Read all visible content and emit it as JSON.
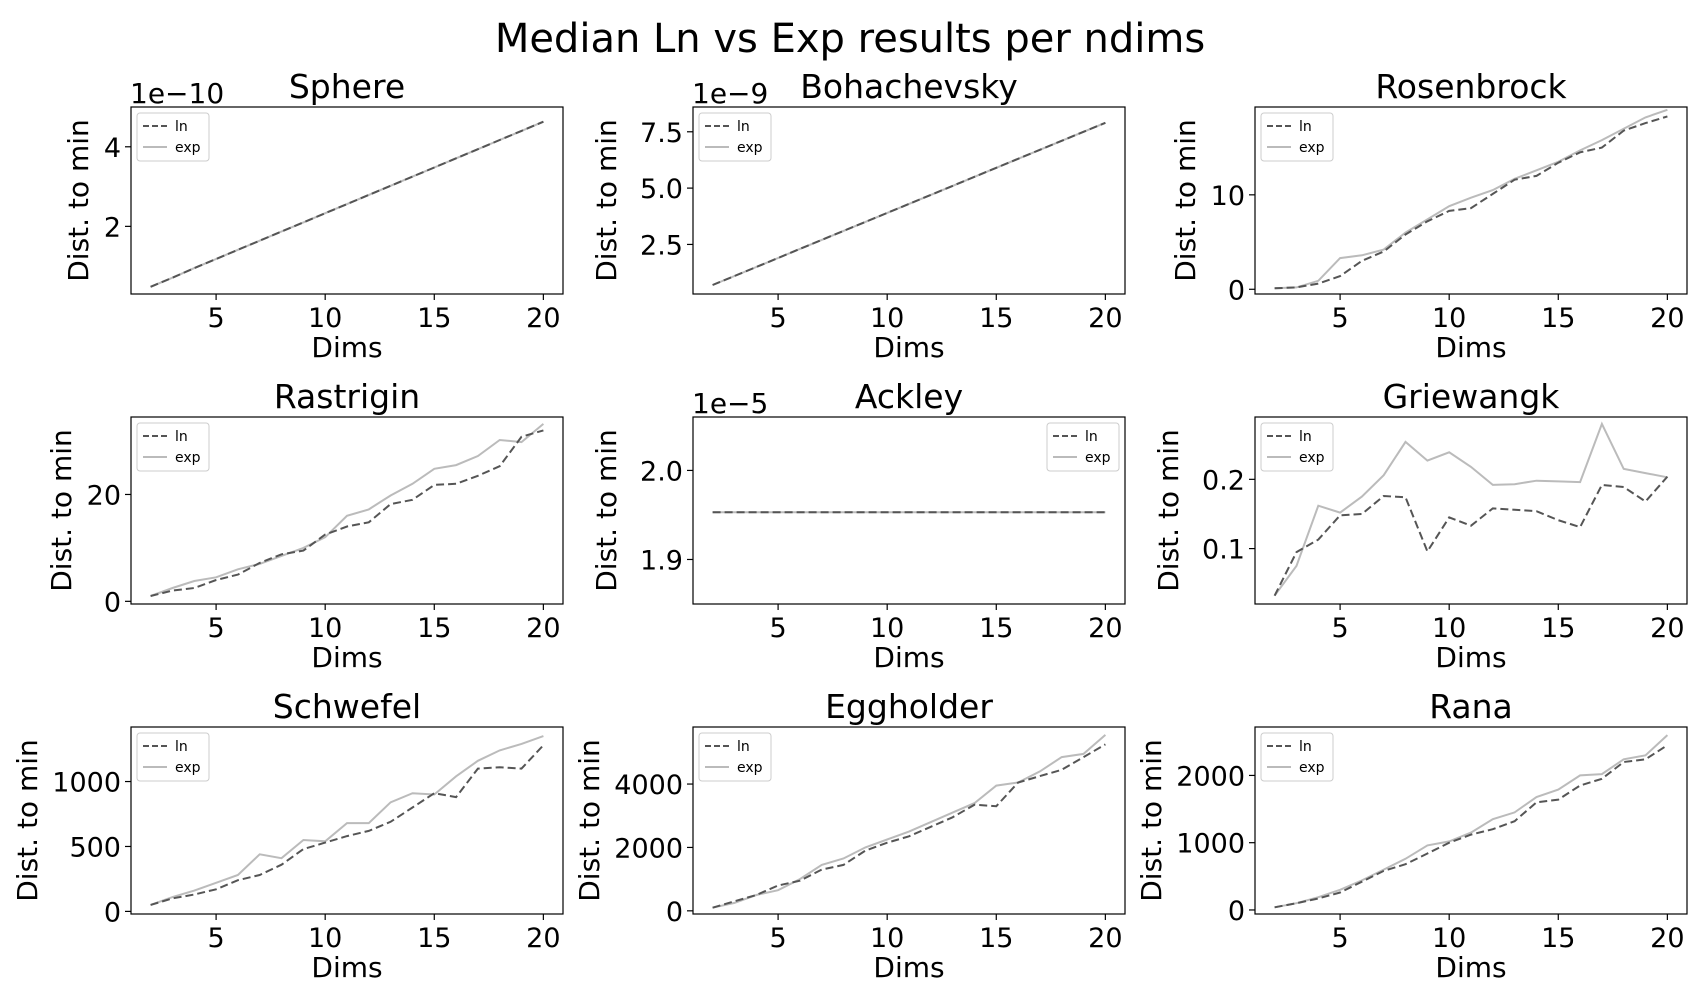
{
  "figure": {
    "title": "Median Ln vs Exp results per ndims",
    "legend": [
      "ln",
      "exp"
    ]
  },
  "chart_data": [
    {
      "type": "line",
      "title": "Sphere",
      "xlabel": "Dims",
      "ylabel": "Dist. to min",
      "offset_text": "1e−10",
      "xlim": [
        1.1,
        20.9
      ],
      "ylim": [
        0.3,
        5.0
      ],
      "xticks": [
        5,
        10,
        15,
        20
      ],
      "yticks": [
        2,
        4
      ],
      "legend_position": "upper left",
      "x": [
        2,
        3,
        4,
        5,
        6,
        7,
        8,
        9,
        10,
        11,
        12,
        13,
        14,
        15,
        16,
        17,
        18,
        19,
        20
      ],
      "series": [
        {
          "name": "ln",
          "style": "dashed",
          "color": "#555555",
          "values": [
            0.48,
            0.71,
            0.95,
            1.18,
            1.41,
            1.64,
            1.87,
            2.1,
            2.33,
            2.56,
            2.79,
            3.02,
            3.25,
            3.48,
            3.71,
            3.94,
            4.17,
            4.4,
            4.63
          ]
        },
        {
          "name": "exp",
          "style": "solid",
          "color": "#bbbbbb",
          "values": [
            0.48,
            0.71,
            0.95,
            1.18,
            1.41,
            1.64,
            1.87,
            2.1,
            2.33,
            2.56,
            2.79,
            3.02,
            3.25,
            3.48,
            3.71,
            3.94,
            4.17,
            4.4,
            4.63
          ]
        }
      ]
    },
    {
      "type": "line",
      "title": "Bohachevsky",
      "xlabel": "Dims",
      "ylabel": "Dist. to min",
      "offset_text": "1e−9",
      "xlim": [
        1.1,
        20.9
      ],
      "ylim": [
        0.3,
        8.6
      ],
      "xticks": [
        5,
        10,
        15,
        20
      ],
      "yticks": [
        2.5,
        5.0,
        7.5
      ],
      "legend_position": "upper left",
      "x": [
        2,
        3,
        4,
        5,
        6,
        7,
        8,
        9,
        10,
        11,
        12,
        13,
        14,
        15,
        16,
        17,
        18,
        19,
        20
      ],
      "series": [
        {
          "name": "ln",
          "style": "dashed",
          "color": "#555555",
          "values": [
            0.7,
            1.1,
            1.5,
            1.9,
            2.3,
            2.7,
            3.1,
            3.5,
            3.9,
            4.3,
            4.7,
            5.1,
            5.5,
            5.9,
            6.3,
            6.7,
            7.1,
            7.5,
            7.9
          ]
        },
        {
          "name": "exp",
          "style": "solid",
          "color": "#bbbbbb",
          "values": [
            0.7,
            1.1,
            1.5,
            1.9,
            2.3,
            2.7,
            3.1,
            3.5,
            3.9,
            4.3,
            4.7,
            5.1,
            5.5,
            5.9,
            6.3,
            6.7,
            7.1,
            7.5,
            7.9
          ]
        }
      ]
    },
    {
      "type": "line",
      "title": "Rosenbrock",
      "xlabel": "Dims",
      "ylabel": "Dist. to min",
      "offset_text": "",
      "xlim": [
        1.1,
        20.9
      ],
      "ylim": [
        -0.5,
        19.3
      ],
      "xticks": [
        5,
        10,
        15,
        20
      ],
      "yticks": [
        0,
        10
      ],
      "legend_position": "upper left",
      "x": [
        2,
        3,
        4,
        5,
        6,
        7,
        8,
        9,
        10,
        11,
        12,
        13,
        14,
        15,
        16,
        17,
        18,
        19,
        20
      ],
      "series": [
        {
          "name": "ln",
          "style": "dashed",
          "color": "#555555",
          "values": [
            0.1,
            0.2,
            0.6,
            1.4,
            3.0,
            4.0,
            5.8,
            7.2,
            8.3,
            8.6,
            10.1,
            11.6,
            12.0,
            13.4,
            14.5,
            15.0,
            16.8,
            17.6,
            18.3
          ]
        },
        {
          "name": "exp",
          "style": "solid",
          "color": "#bbbbbb",
          "values": [
            0.1,
            0.2,
            0.9,
            3.3,
            3.6,
            4.2,
            6.0,
            7.4,
            8.8,
            9.7,
            10.5,
            11.7,
            12.6,
            13.5,
            14.7,
            15.8,
            17.0,
            18.2,
            19.0
          ]
        }
      ]
    },
    {
      "type": "line",
      "title": "Rastrigin",
      "xlabel": "Dims",
      "ylabel": "Dist. to min",
      "offset_text": "",
      "xlim": [
        1.1,
        20.9
      ],
      "ylim": [
        -0.5,
        34.5
      ],
      "xticks": [
        5,
        10,
        15,
        20
      ],
      "yticks": [
        0,
        20
      ],
      "legend_position": "upper left",
      "x": [
        2,
        3,
        4,
        5,
        6,
        7,
        8,
        9,
        10,
        11,
        12,
        13,
        14,
        15,
        16,
        17,
        18,
        19,
        20
      ],
      "series": [
        {
          "name": "ln",
          "style": "dashed",
          "color": "#555555",
          "values": [
            1.0,
            2.0,
            2.5,
            4.0,
            5.0,
            7.2,
            8.8,
            9.5,
            12.5,
            14.0,
            14.8,
            18.2,
            19.0,
            21.8,
            22.0,
            23.5,
            25.3,
            30.8,
            32.0
          ]
        },
        {
          "name": "exp",
          "style": "solid",
          "color": "#bbbbbb",
          "values": [
            1.0,
            2.5,
            3.8,
            4.5,
            6.0,
            7.0,
            8.5,
            10.0,
            12.0,
            16.0,
            17.2,
            19.8,
            22.0,
            24.8,
            25.5,
            27.2,
            30.2,
            29.8,
            33.2
          ]
        }
      ]
    },
    {
      "type": "line",
      "title": "Ackley",
      "xlabel": "Dims",
      "ylabel": "Dist. to min",
      "offset_text": "1e−5",
      "xlim": [
        1.1,
        20.9
      ],
      "ylim": [
        1.85,
        2.06
      ],
      "xticks": [
        5,
        10,
        15,
        20
      ],
      "yticks": [
        1.9,
        2.0
      ],
      "legend_position": "upper right",
      "x": [
        2,
        3,
        4,
        5,
        6,
        7,
        8,
        9,
        10,
        11,
        12,
        13,
        14,
        15,
        16,
        17,
        18,
        19,
        20
      ],
      "series": [
        {
          "name": "ln",
          "style": "dashed",
          "color": "#555555",
          "values": [
            1.953,
            1.953,
            1.953,
            1.953,
            1.953,
            1.953,
            1.953,
            1.953,
            1.953,
            1.953,
            1.953,
            1.953,
            1.953,
            1.953,
            1.953,
            1.953,
            1.953,
            1.953,
            1.953
          ]
        },
        {
          "name": "exp",
          "style": "solid",
          "color": "#bbbbbb",
          "values": [
            1.953,
            1.953,
            1.953,
            1.953,
            1.953,
            1.953,
            1.953,
            1.953,
            1.953,
            1.953,
            1.953,
            1.953,
            1.953,
            1.953,
            1.953,
            1.953,
            1.953,
            1.953,
            1.953
          ]
        }
      ]
    },
    {
      "type": "line",
      "title": "Griewangk",
      "xlabel": "Dims",
      "ylabel": "Dist. to min",
      "offset_text": "",
      "xlim": [
        1.1,
        20.9
      ],
      "ylim": [
        0.02,
        0.29
      ],
      "xticks": [
        5,
        10,
        15,
        20
      ],
      "yticks": [
        0.1,
        0.2
      ],
      "legend_position": "upper left",
      "x": [
        2,
        3,
        4,
        5,
        6,
        7,
        8,
        9,
        10,
        11,
        12,
        13,
        14,
        15,
        16,
        17,
        18,
        19,
        20
      ],
      "series": [
        {
          "name": "ln",
          "style": "dashed",
          "color": "#555555",
          "values": [
            0.032,
            0.095,
            0.113,
            0.148,
            0.15,
            0.176,
            0.174,
            0.096,
            0.145,
            0.133,
            0.158,
            0.156,
            0.154,
            0.141,
            0.131,
            0.192,
            0.189,
            0.168,
            0.204
          ]
        },
        {
          "name": "exp",
          "style": "solid",
          "color": "#bbbbbb",
          "values": [
            0.032,
            0.075,
            0.162,
            0.152,
            0.175,
            0.206,
            0.254,
            0.227,
            0.239,
            0.218,
            0.192,
            0.193,
            0.198,
            0.197,
            0.196,
            0.28,
            0.215,
            0.209,
            0.203
          ]
        }
      ]
    },
    {
      "type": "line",
      "title": "Schwefel",
      "xlabel": "Dims",
      "ylabel": "Dist. to min",
      "offset_text": "",
      "xlim": [
        1.1,
        20.9
      ],
      "ylim": [
        -20,
        1420
      ],
      "xticks": [
        5,
        10,
        15,
        20
      ],
      "yticks": [
        0,
        500,
        1000
      ],
      "legend_position": "upper left",
      "x": [
        2,
        3,
        4,
        5,
        6,
        7,
        8,
        9,
        10,
        11,
        12,
        13,
        14,
        15,
        16,
        17,
        18,
        19,
        20
      ],
      "series": [
        {
          "name": "ln",
          "style": "dashed",
          "color": "#555555",
          "values": [
            50,
            100,
            130,
            170,
            240,
            280,
            360,
            480,
            530,
            580,
            620,
            690,
            800,
            910,
            880,
            1100,
            1110,
            1100,
            1280
          ]
        },
        {
          "name": "exp",
          "style": "solid",
          "color": "#bbbbbb",
          "values": [
            50,
            110,
            160,
            220,
            280,
            440,
            410,
            550,
            540,
            680,
            680,
            840,
            910,
            900,
            1040,
            1160,
            1240,
            1290,
            1350
          ]
        }
      ]
    },
    {
      "type": "line",
      "title": "Eggholder",
      "xlabel": "Dims",
      "ylabel": "Dist. to min",
      "offset_text": "",
      "xlim": [
        1.1,
        20.9
      ],
      "ylim": [
        -100,
        5800
      ],
      "xticks": [
        5,
        10,
        15,
        20
      ],
      "yticks": [
        0,
        2000,
        4000
      ],
      "legend_position": "upper left",
      "x": [
        2,
        3,
        4,
        5,
        6,
        7,
        8,
        9,
        10,
        11,
        12,
        13,
        14,
        15,
        16,
        17,
        18,
        19,
        20
      ],
      "series": [
        {
          "name": "ln",
          "style": "dashed",
          "color": "#555555",
          "values": [
            100,
            300,
            500,
            800,
            950,
            1300,
            1450,
            1900,
            2150,
            2350,
            2650,
            2950,
            3350,
            3300,
            4050,
            4250,
            4450,
            4850,
            5250
          ]
        },
        {
          "name": "exp",
          "style": "solid",
          "color": "#bbbbbb",
          "values": [
            100,
            250,
            500,
            650,
            1000,
            1450,
            1650,
            2000,
            2250,
            2500,
            2800,
            3100,
            3400,
            3950,
            4050,
            4400,
            4850,
            4950,
            5550
          ]
        }
      ]
    },
    {
      "type": "line",
      "title": "Rana",
      "xlabel": "Dims",
      "ylabel": "Dist. to min",
      "offset_text": "",
      "xlim": [
        1.1,
        20.9
      ],
      "ylim": [
        -60,
        2720
      ],
      "xticks": [
        5,
        10,
        15,
        20
      ],
      "yticks": [
        0,
        1000,
        2000
      ],
      "legend_position": "upper left",
      "x": [
        2,
        3,
        4,
        5,
        6,
        7,
        8,
        9,
        10,
        11,
        12,
        13,
        14,
        15,
        16,
        17,
        18,
        19,
        20
      ],
      "series": [
        {
          "name": "ln",
          "style": "dashed",
          "color": "#555555",
          "values": [
            40,
            100,
            170,
            260,
            420,
            580,
            680,
            840,
            1000,
            1120,
            1200,
            1320,
            1600,
            1640,
            1850,
            1950,
            2200,
            2240,
            2450
          ]
        },
        {
          "name": "exp",
          "style": "solid",
          "color": "#bbbbbb",
          "values": [
            40,
            100,
            190,
            300,
            440,
            600,
            760,
            960,
            1020,
            1150,
            1350,
            1450,
            1680,
            1790,
            2000,
            2020,
            2240,
            2300,
            2600
          ]
        }
      ]
    }
  ]
}
